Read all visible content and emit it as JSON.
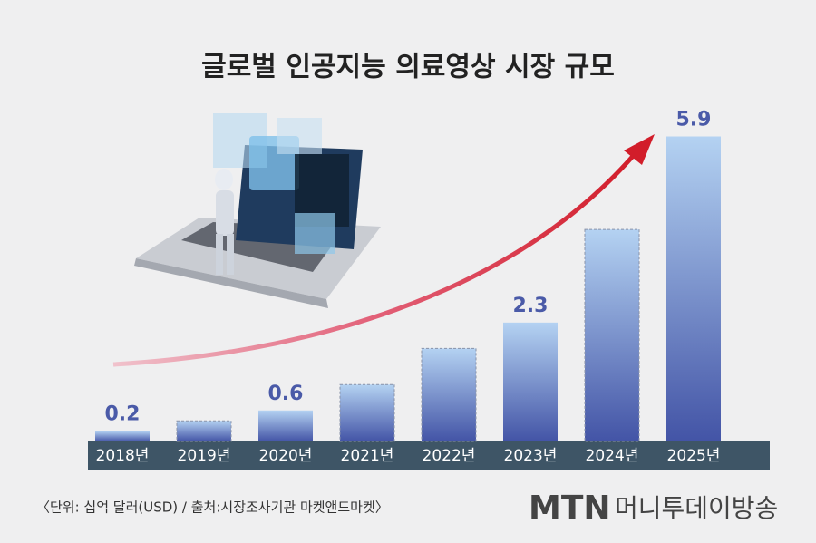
{
  "chart_data": {
    "type": "bar",
    "title": "글로벌 인공지능 의료영상 시장 규모",
    "categories": [
      "2018년",
      "2019년",
      "2020년",
      "2021년",
      "2022년",
      "2023년",
      "2024년",
      "2025년"
    ],
    "values": [
      0.2,
      0.4,
      0.6,
      1.1,
      1.8,
      2.3,
      4.1,
      5.9
    ],
    "value_labels": [
      "0.2",
      null,
      "0.6",
      null,
      null,
      "2.3",
      null,
      "5.9"
    ],
    "ylim": [
      0,
      6.4
    ],
    "source": "〈단위: 십억 달러(USD) / 출처:시장조사기관 마켓앤드마켓〉",
    "logo": "MTN",
    "broadcaster": "머니투데이방송"
  }
}
